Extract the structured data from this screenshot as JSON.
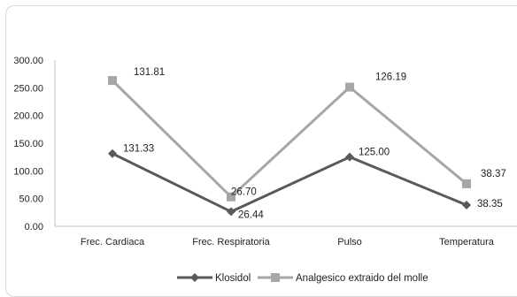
{
  "chart_data": {
    "type": "line",
    "categories": [
      "Frec. Cardiaca",
      "Frec. Respiratoria",
      "Pulso",
      "Temperatura"
    ],
    "ylim": [
      0,
      300
    ],
    "yticks": [
      "0.00",
      "50.00",
      "100.00",
      "150.00",
      "200.00",
      "250.00",
      "300.00"
    ],
    "grid": false,
    "legend_position": "bottom",
    "series": [
      {
        "name": "Klosidol",
        "values": [
          131.33,
          26.44,
          125.0,
          38.35
        ],
        "labels": [
          "131.33",
          "26.44",
          "125.00",
          "38.35"
        ],
        "color": "#595959",
        "marker": "diamond"
      },
      {
        "name": "Analgesico extraido del molle",
        "values": [
          263.14,
          53.14,
          251.19,
          76.72
        ],
        "labels": [
          "131.81",
          "26.70",
          "126.19",
          "38.37"
        ],
        "color": "#a6a6a6",
        "marker": "square"
      }
    ]
  }
}
